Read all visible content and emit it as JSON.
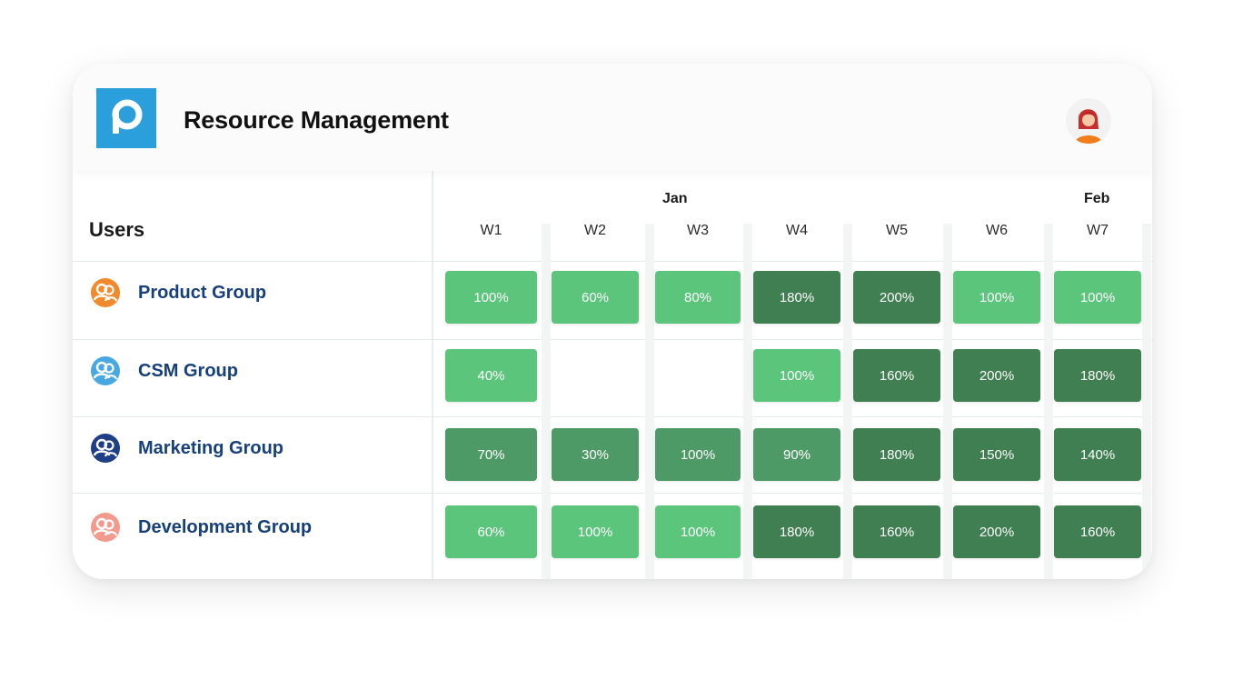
{
  "header": {
    "title": "Resource Management",
    "logo_letter": "p",
    "logo_color": "#2a9fdc"
  },
  "table": {
    "users_heading": "Users",
    "months": [
      "Jan",
      "Feb"
    ],
    "weeks": [
      "W1",
      "W2",
      "W3",
      "W4",
      "W5",
      "W6",
      "W7"
    ]
  },
  "groups": [
    {
      "label": "Product Group",
      "icon": "users-icon",
      "icon_color": "#f08a2c",
      "cells": [
        "100%",
        "60%",
        "80%",
        "180%",
        "200%",
        "100%",
        "100%"
      ]
    },
    {
      "label": "CSM Group",
      "icon": "users-icon",
      "icon_color": "#48a8e0",
      "cells": [
        "40%",
        "",
        "",
        "100%",
        "160%",
        "200%",
        "180%"
      ]
    },
    {
      "label": "Marketing Group",
      "icon": "users-icon",
      "icon_color": "#1f3f86",
      "cells": [
        "70%",
        "30%",
        "100%",
        "90%",
        "180%",
        "150%",
        "140%"
      ]
    },
    {
      "label": "Development Group",
      "icon": "users-icon",
      "icon_color": "#f29a8e",
      "cells": [
        "60%",
        "100%",
        "100%",
        "180%",
        "160%",
        "200%",
        "160%"
      ]
    }
  ],
  "colors": {
    "light_green": "#5ac57b",
    "mid_green": "#4e9a66",
    "dark_green": "#3f7f51"
  }
}
